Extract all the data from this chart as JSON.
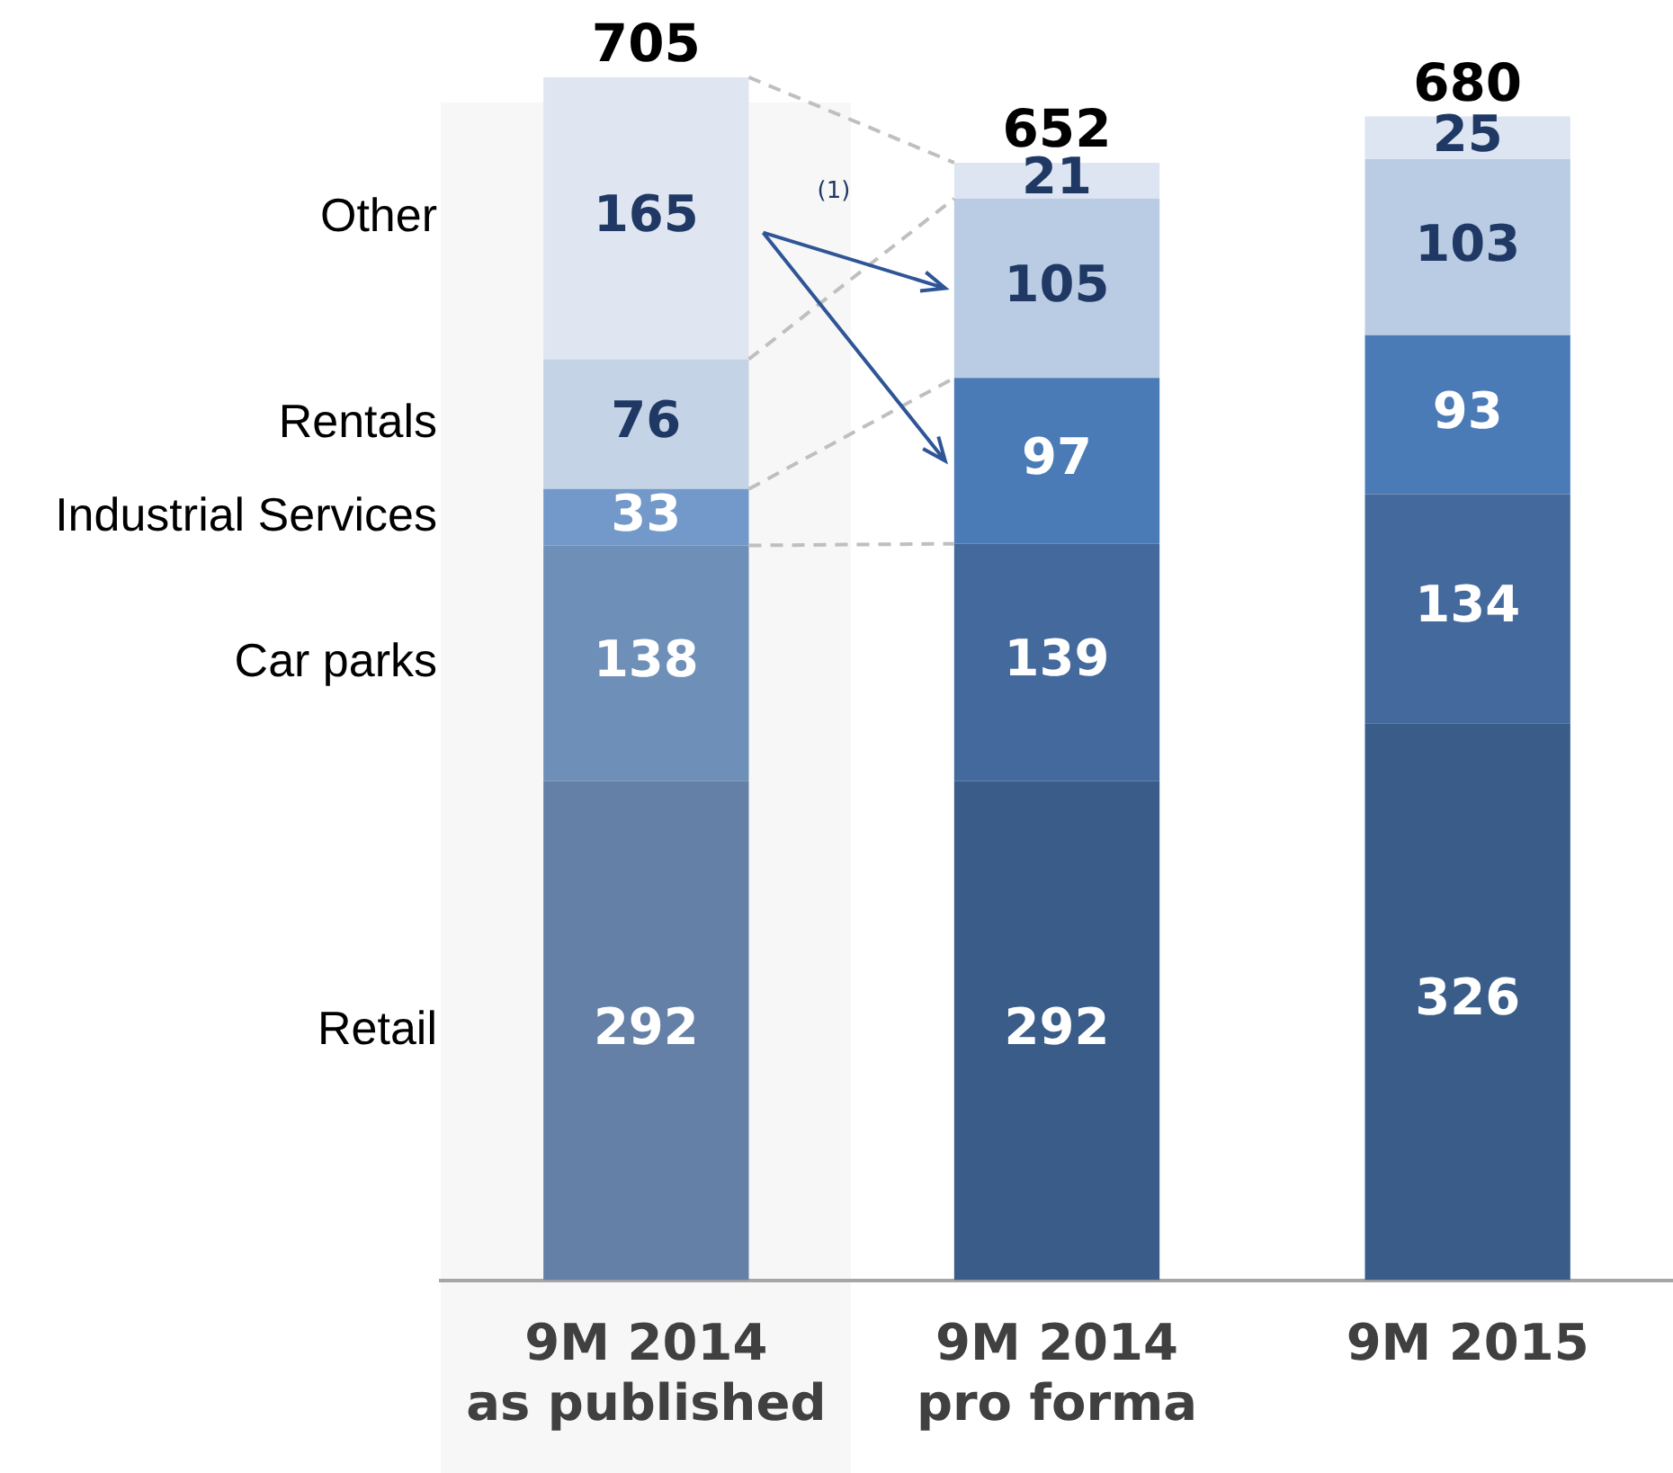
{
  "chart_data": {
    "type": "bar",
    "stacked": true,
    "categories": [
      "9M 2014\nas published",
      "9M 2014\npro forma",
      "9M 2015"
    ],
    "series": [
      {
        "name": "Retail",
        "colors": [
          "#6480a6",
          "#3a5c88",
          "#3a5c88"
        ],
        "values": [
          292,
          292,
          326
        ]
      },
      {
        "name": "Car parks",
        "colors": [
          "#6e8fb8",
          "#44699c",
          "#44699c"
        ],
        "values": [
          138,
          139,
          134
        ]
      },
      {
        "name": "Industrial Services",
        "colors": [
          "#7299c9",
          "#4a7bb7",
          "#4a7bb7"
        ],
        "values": [
          33,
          97,
          93
        ]
      },
      {
        "name": "Rentals",
        "colors": [
          "#c5d3e6",
          "#b9cce4",
          "#b9cce4"
        ],
        "values": [
          76,
          105,
          103
        ]
      },
      {
        "name": "Other",
        "colors": [
          "#dfe6f1",
          "#dce5f1",
          "#dce5f1"
        ],
        "values": [
          165,
          21,
          25
        ]
      }
    ],
    "ylim": [
      0,
      705
    ],
    "tick_labels": "x",
    "grid": false,
    "legend": false,
    "data_labels": true,
    "totals": [
      "705",
      "652",
      "680"
    ],
    "annotations": [
      "(1)"
    ]
  }
}
